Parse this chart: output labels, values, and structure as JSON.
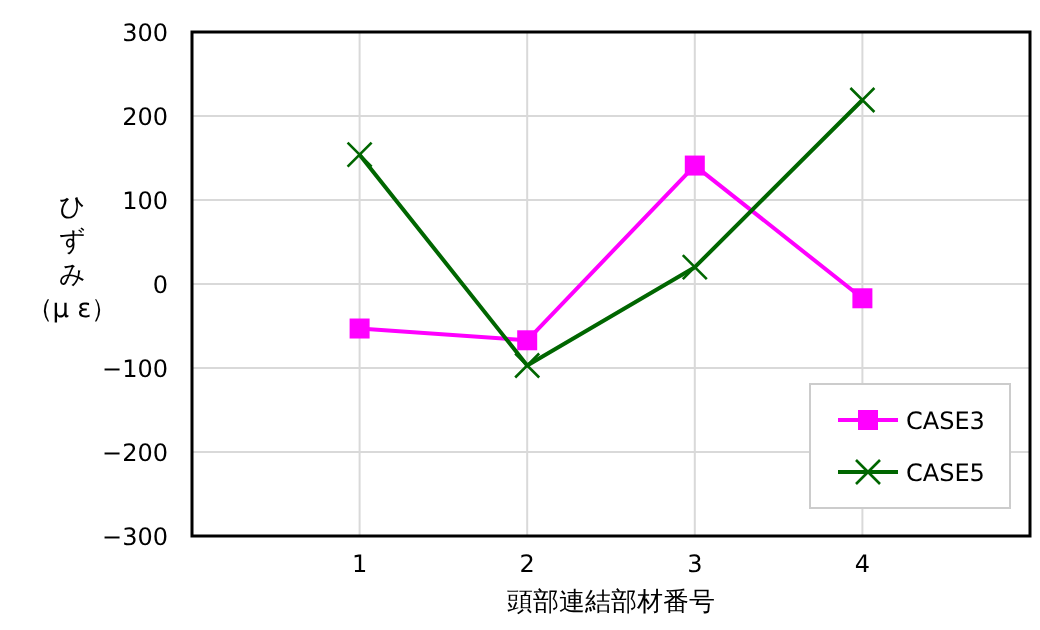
{
  "chart_data": {
    "type": "line",
    "xlabel": "頭部連結部材番号",
    "ylabel": "ひずみ（μ ε）",
    "x": [
      1,
      2,
      3,
      4
    ],
    "xlim": [
      0,
      5
    ],
    "xticks": [
      1,
      2,
      3,
      4
    ],
    "ylim": [
      -300,
      300
    ],
    "yticks": [
      -300,
      -200,
      -100,
      0,
      100,
      200,
      300
    ],
    "grid": true,
    "legend": "bottom right",
    "line_style": "solid",
    "series": [
      {
        "name": "CASE3",
        "color": "#ff00ff",
        "marker": "square",
        "values": [
          -53,
          -67,
          141,
          -17
        ]
      },
      {
        "name": "CASE5",
        "color": "#006600",
        "marker": "cross",
        "values": [
          154,
          -97,
          20,
          219
        ]
      }
    ]
  }
}
